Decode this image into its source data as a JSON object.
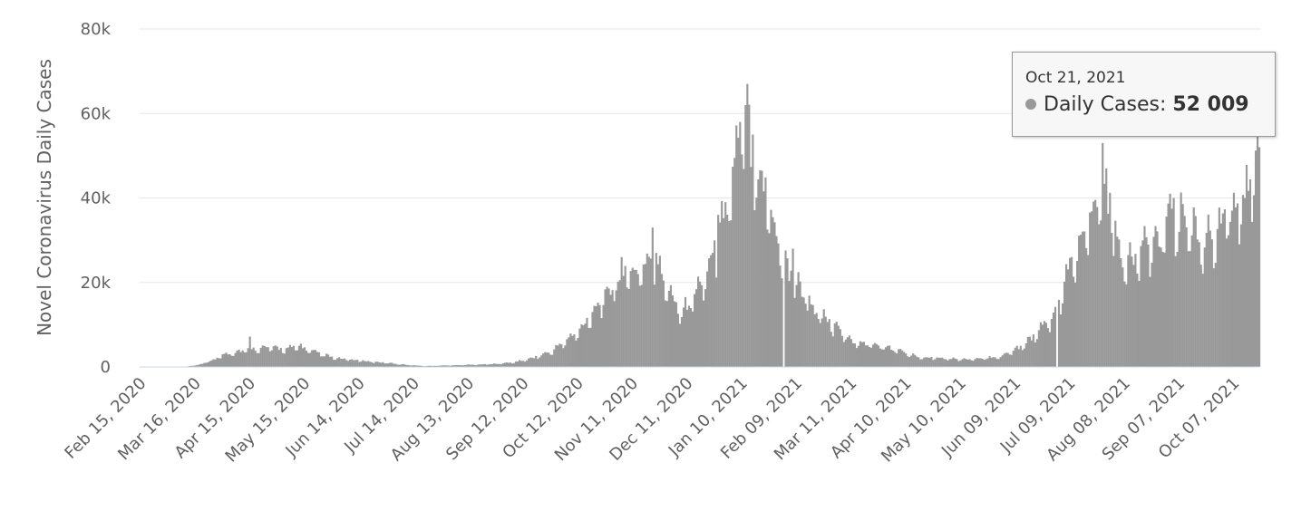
{
  "chart_data": {
    "type": "bar",
    "ylabel": "Novel Coronavirus Daily Cases",
    "ylim": [
      0,
      80000
    ],
    "yticks": [
      0,
      20000,
      40000,
      60000,
      80000
    ],
    "ytick_labels": [
      "0",
      "20k",
      "40k",
      "60k",
      "80k"
    ],
    "x_start": "2020-02-15",
    "x_end": "2021-10-21",
    "xtick_labels": [
      "Feb 15, 2020",
      "Mar 16, 2020",
      "Apr 15, 2020",
      "May 15, 2020",
      "Jun 14, 2020",
      "Jul 14, 2020",
      "Aug 13, 2020",
      "Sep 12, 2020",
      "Oct 12, 2020",
      "Nov 11, 2020",
      "Dec 11, 2020",
      "Jan 10, 2021",
      "Feb 09, 2021",
      "Mar 11, 2021",
      "Apr 10, 2021",
      "May 10, 2021",
      "Jun 09, 2021",
      "Jul 09, 2021",
      "Aug 08, 2021",
      "Sep 07, 2021",
      "Oct 07, 2021"
    ],
    "grid": true,
    "bar_color": "#999999",
    "series": [
      {
        "name": "Daily Cases",
        "keypoints": [
          [
            "2020-02-15",
            0
          ],
          [
            "2020-03-10",
            0
          ],
          [
            "2020-03-18",
            500
          ],
          [
            "2020-03-25",
            1500
          ],
          [
            "2020-04-01",
            3000
          ],
          [
            "2020-04-15",
            4200
          ],
          [
            "2020-04-25",
            4500
          ],
          [
            "2020-05-05",
            4200
          ],
          [
            "2020-05-12",
            4800
          ],
          [
            "2020-05-20",
            3500
          ],
          [
            "2020-06-01",
            2000
          ],
          [
            "2020-06-14",
            1500
          ],
          [
            "2020-06-30",
            900
          ],
          [
            "2020-07-10",
            500
          ],
          [
            "2020-07-20",
            200
          ],
          [
            "2020-07-28",
            300
          ],
          [
            "2020-08-13",
            500
          ],
          [
            "2020-08-28",
            700
          ],
          [
            "2020-09-05",
            1000
          ],
          [
            "2020-09-12",
            1500
          ],
          [
            "2020-09-20",
            2500
          ],
          [
            "2020-09-27",
            3500
          ],
          [
            "2020-10-05",
            6000
          ],
          [
            "2020-10-12",
            8000
          ],
          [
            "2020-10-20",
            13000
          ],
          [
            "2020-10-28",
            17000
          ],
          [
            "2020-11-04",
            21000
          ],
          [
            "2020-11-11",
            22000
          ],
          [
            "2020-11-18",
            24000
          ],
          [
            "2020-11-22",
            25000
          ],
          [
            "2020-11-28",
            21000
          ],
          [
            "2020-12-03",
            17000
          ],
          [
            "2020-12-08",
            13000
          ],
          [
            "2020-12-14",
            16000
          ],
          [
            "2020-12-20",
            21000
          ],
          [
            "2020-12-27",
            28000
          ],
          [
            "2021-01-02",
            38000
          ],
          [
            "2021-01-07",
            50000
          ],
          [
            "2021-01-12",
            60000
          ],
          [
            "2021-01-15",
            52000
          ],
          [
            "2021-01-19",
            48000
          ],
          [
            "2021-01-25",
            38000
          ],
          [
            "2021-02-01",
            27000
          ],
          [
            "2021-02-05",
            22000
          ],
          [
            "2021-02-12",
            18000
          ],
          [
            "2021-02-20",
            13000
          ],
          [
            "2021-02-28",
            10000
          ],
          [
            "2021-03-11",
            6000
          ],
          [
            "2021-03-25",
            5000
          ],
          [
            "2021-04-05",
            4000
          ],
          [
            "2021-04-15",
            2500
          ],
          [
            "2021-04-25",
            2200
          ],
          [
            "2021-05-10",
            1800
          ],
          [
            "2021-05-20",
            1800
          ],
          [
            "2021-06-01",
            2500
          ],
          [
            "2021-06-09",
            4000
          ],
          [
            "2021-06-20",
            7500
          ],
          [
            "2021-06-30",
            12000
          ],
          [
            "2021-07-05",
            17000
          ],
          [
            "2021-07-10",
            25000
          ],
          [
            "2021-07-17",
            30000
          ],
          [
            "2021-07-23",
            37000
          ],
          [
            "2021-07-27",
            46000
          ],
          [
            "2021-08-01",
            35000
          ],
          [
            "2021-08-05",
            27000
          ],
          [
            "2021-08-10",
            24000
          ],
          [
            "2021-08-20",
            28000
          ],
          [
            "2021-08-30",
            32000
          ],
          [
            "2021-09-07",
            35000
          ],
          [
            "2021-09-15",
            32000
          ],
          [
            "2021-09-20",
            29000
          ],
          [
            "2021-09-27",
            32000
          ],
          [
            "2021-10-05",
            35000
          ],
          [
            "2021-10-12",
            40000
          ],
          [
            "2021-10-18",
            45000
          ],
          [
            "2021-10-21",
            52009
          ]
        ],
        "peaks": [
          [
            "2020-04-15",
            7200
          ],
          [
            "2020-05-13",
            5500
          ],
          [
            "2020-10-28",
            19000
          ],
          [
            "2020-11-05",
            26000
          ],
          [
            "2020-11-22",
            33000
          ],
          [
            "2020-11-24",
            27000
          ],
          [
            "2020-12-28",
            36000
          ],
          [
            "2021-01-01",
            39000
          ],
          [
            "2021-01-09",
            58000
          ],
          [
            "2021-01-12",
            62000
          ],
          [
            "2021-01-13",
            67000
          ],
          [
            "2021-01-16",
            55000
          ],
          [
            "2021-02-07",
            28000
          ],
          [
            "2021-07-27",
            53000
          ],
          [
            "2021-09-02",
            41000
          ],
          [
            "2021-09-04",
            40000
          ],
          [
            "2021-10-13",
            40000
          ],
          [
            "2021-10-21",
            52009
          ]
        ],
        "dips": [
          [
            "2021-02-02",
            0
          ],
          [
            "2021-07-02",
            0
          ]
        ]
      }
    ]
  },
  "tooltip": {
    "date": "Oct 21, 2021",
    "series_label": "Daily Cases:",
    "value": "52 009"
  }
}
